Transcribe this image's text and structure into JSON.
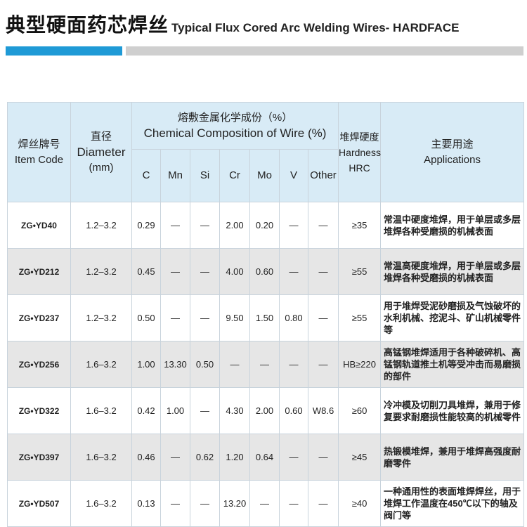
{
  "header": {
    "title_cn": "典型硬面药芯焊丝",
    "title_en": "Typical Flux Cored Arc Welding Wires- HARDFACE"
  },
  "table": {
    "item_code": [
      "焊丝牌号",
      "Item Code"
    ],
    "diameter": [
      "直径",
      "Diameter",
      "(mm)"
    ],
    "composition": [
      "熔敷金属化学成份（%）",
      "Chemical Composition of Wire (%)"
    ],
    "elements": [
      "C",
      "Mn",
      "Si",
      "Cr",
      "Mo",
      "V",
      "Other"
    ],
    "hardness": [
      "堆焊硬度",
      "Hardness",
      "HRC"
    ],
    "applications": [
      "主要用途",
      "Applications"
    ],
    "rows": [
      [
        "ZG•YD40",
        "1.2–3.2",
        "0.29",
        "—",
        "—",
        "2.00",
        "0.20",
        "—",
        "—",
        "≥35",
        "常温中硬度堆焊，用于单层或多层堆焊各种受磨损的机械表面"
      ],
      [
        "ZG•YD212",
        "1.2–3.2",
        "0.45",
        "—",
        "—",
        "4.00",
        "0.60",
        "—",
        "—",
        "≥55",
        "常温高硬度堆焊，用于单层或多层堆焊各种受磨损的机械表面"
      ],
      [
        "ZG•YD237",
        "1.2–3.2",
        "0.50",
        "—",
        "—",
        "9.50",
        "1.50",
        "0.80",
        "—",
        "≥55",
        "用于堆焊受泥砂磨损及气蚀破坏的水利机械、挖泥斗、矿山机械零件等"
      ],
      [
        "ZG•YD256",
        "1.6–3.2",
        "1.00",
        "13.30",
        "0.50",
        "—",
        "—",
        "—",
        "—",
        "HB≥220",
        "高锰钢堆焊适用于各种破碎机、高锰钢轨道推土机等受冲击而易磨损的部件"
      ],
      [
        "ZG•YD322",
        "1.6–3.2",
        "0.42",
        "1.00",
        "—",
        "4.30",
        "2.00",
        "0.60",
        "W8.6",
        "≥60",
        "冷冲模及切削刀具堆焊，兼用于修复要求耐磨损性能较高的机械零件"
      ],
      [
        "ZG•YD397",
        "1.6–3.2",
        "0.46",
        "—",
        "0.62",
        "1.20",
        "0.64",
        "—",
        "—",
        "≥45",
        "热锻模堆焊，兼用于堆焊高强度耐磨零件"
      ],
      [
        "ZG•YD507",
        "1.6–3.2",
        "0.13",
        "—",
        "—",
        "13.20",
        "—",
        "—",
        "—",
        "≥40",
        "一种通用性的表面堆焊焊丝，用于堆焊工作温度在450℃以下的轴及阀门等"
      ]
    ]
  }
}
